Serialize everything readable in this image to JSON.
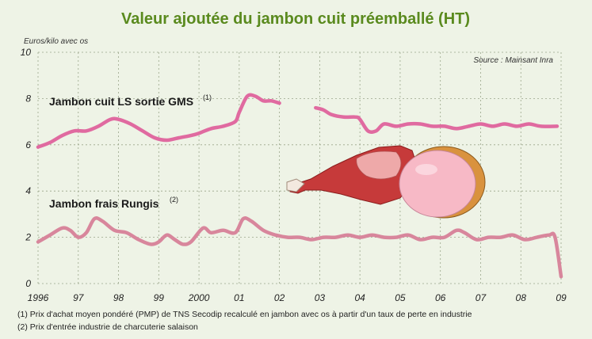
{
  "chart_data": {
    "type": "line",
    "title": "Valeur ajoutée du jambon cuit préemballé (HT)",
    "ylabel": "Euros/kilo avec os",
    "source": "Source : Mainsant Inra",
    "x_ticks": [
      "1996",
      "97",
      "98",
      "99",
      "2000",
      "01",
      "02",
      "03",
      "04",
      "05",
      "06",
      "07",
      "08",
      "09"
    ],
    "y_ticks": [
      0,
      2,
      4,
      6,
      8,
      10
    ],
    "xlim": [
      1996,
      2009
    ],
    "ylim": [
      0,
      10
    ],
    "grid": true,
    "series": [
      {
        "name": "Jambon cuit LS sortie GMS",
        "note_ref": "(1)",
        "color": "#e06aa0",
        "segments": [
          [
            [
              1996.0,
              5.9
            ],
            [
              1996.3,
              6.1
            ],
            [
              1996.6,
              6.4
            ],
            [
              1996.9,
              6.6
            ],
            [
              1997.2,
              6.6
            ],
            [
              1997.5,
              6.8
            ],
            [
              1997.8,
              7.1
            ],
            [
              1998.0,
              7.1
            ],
            [
              1998.3,
              6.9
            ],
            [
              1998.6,
              6.6
            ],
            [
              1998.9,
              6.3
            ],
            [
              1999.2,
              6.2
            ],
            [
              1999.5,
              6.3
            ],
            [
              1999.8,
              6.4
            ],
            [
              2000.0,
              6.5
            ],
            [
              2000.3,
              6.7
            ],
            [
              2000.6,
              6.8
            ],
            [
              2000.9,
              7.0
            ],
            [
              2001.0,
              7.4
            ],
            [
              2001.2,
              8.1
            ],
            [
              2001.4,
              8.1
            ],
            [
              2001.6,
              7.9
            ],
            [
              2001.8,
              7.9
            ],
            [
              2002.0,
              7.8
            ]
          ],
          [
            [
              2002.9,
              7.6
            ],
            [
              2003.1,
              7.5
            ],
            [
              2003.3,
              7.3
            ],
            [
              2003.6,
              7.2
            ],
            [
              2003.9,
              7.2
            ],
            [
              2004.0,
              7.1
            ],
            [
              2004.2,
              6.6
            ],
            [
              2004.4,
              6.6
            ],
            [
              2004.6,
              6.9
            ],
            [
              2004.9,
              6.8
            ],
            [
              2005.2,
              6.9
            ],
            [
              2005.5,
              6.9
            ],
            [
              2005.8,
              6.8
            ],
            [
              2006.1,
              6.8
            ],
            [
              2006.4,
              6.7
            ],
            [
              2006.7,
              6.8
            ],
            [
              2007.0,
              6.9
            ],
            [
              2007.3,
              6.8
            ],
            [
              2007.6,
              6.9
            ],
            [
              2007.9,
              6.8
            ],
            [
              2008.2,
              6.9
            ],
            [
              2008.5,
              6.8
            ],
            [
              2008.9,
              6.8
            ]
          ]
        ]
      },
      {
        "name": "Jambon frais Rungis",
        "note_ref": "(2)",
        "color": "#d8869c",
        "segments": [
          [
            [
              1996.0,
              1.8
            ],
            [
              1996.3,
              2.1
            ],
            [
              1996.6,
              2.4
            ],
            [
              1996.8,
              2.3
            ],
            [
              1997.0,
              2.0
            ],
            [
              1997.2,
              2.2
            ],
            [
              1997.4,
              2.8
            ],
            [
              1997.6,
              2.7
            ],
            [
              1997.9,
              2.3
            ],
            [
              1998.2,
              2.2
            ],
            [
              1998.5,
              1.9
            ],
            [
              1998.8,
              1.7
            ],
            [
              1999.0,
              1.8
            ],
            [
              1999.2,
              2.1
            ],
            [
              1999.4,
              1.9
            ],
            [
              1999.6,
              1.7
            ],
            [
              1999.8,
              1.8
            ],
            [
              2000.1,
              2.4
            ],
            [
              2000.3,
              2.2
            ],
            [
              2000.6,
              2.3
            ],
            [
              2000.9,
              2.2
            ],
            [
              2001.1,
              2.8
            ],
            [
              2001.3,
              2.7
            ],
            [
              2001.6,
              2.3
            ],
            [
              2001.9,
              2.1
            ],
            [
              2002.2,
              2.0
            ],
            [
              2002.5,
              2.0
            ],
            [
              2002.8,
              1.9
            ],
            [
              2003.1,
              2.0
            ],
            [
              2003.4,
              2.0
            ],
            [
              2003.7,
              2.1
            ],
            [
              2004.0,
              2.0
            ],
            [
              2004.3,
              2.1
            ],
            [
              2004.6,
              2.0
            ],
            [
              2004.9,
              2.0
            ],
            [
              2005.2,
              2.1
            ],
            [
              2005.5,
              1.9
            ],
            [
              2005.8,
              2.0
            ],
            [
              2006.1,
              2.0
            ],
            [
              2006.4,
              2.3
            ],
            [
              2006.6,
              2.2
            ],
            [
              2006.9,
              1.9
            ],
            [
              2007.2,
              2.0
            ],
            [
              2007.5,
              2.0
            ],
            [
              2007.8,
              2.1
            ],
            [
              2008.1,
              1.9
            ],
            [
              2008.4,
              2.0
            ],
            [
              2008.7,
              2.1
            ],
            [
              2008.85,
              2.0
            ],
            [
              2009.0,
              0.3
            ]
          ]
        ]
      }
    ],
    "footnotes": [
      "(1) Prix d'achat moyen pondéré (PMP) de TNS Secodip recalculé en jambon avec os à partir d'un taux de perte en industrie",
      "(2) Prix d'entrée industrie de charcuterie salaison"
    ]
  }
}
